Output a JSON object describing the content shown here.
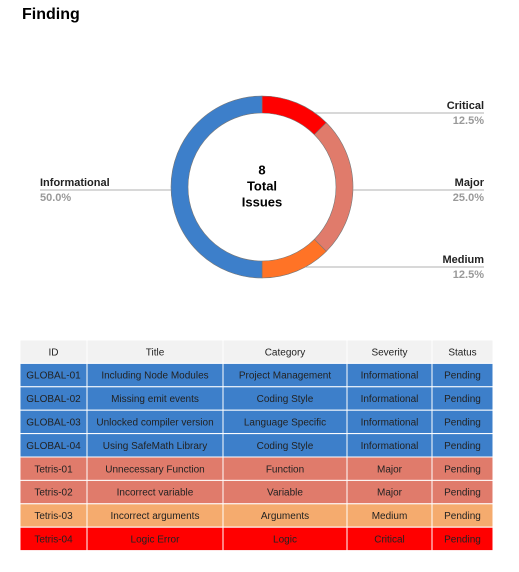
{
  "title": "Finding",
  "chart_data": {
    "type": "donut",
    "categories": [
      "Critical",
      "Major",
      "Medium",
      "Informational"
    ],
    "values": [
      12.5,
      25.0,
      12.5,
      50.0
    ],
    "value_labels": [
      "12.5%",
      "25.0%",
      "12.5%",
      "50.0%"
    ],
    "colors": [
      "#ff0000",
      "#e07b6b",
      "#ff7326",
      "#3d7fca"
    ],
    "center_text": [
      "8",
      "Total",
      "Issues"
    ]
  },
  "table": {
    "header": [
      "ID",
      "Title",
      "Category",
      "Severity",
      "Status"
    ],
    "rows": [
      {
        "color": "#3d7fca",
        "cells": [
          "GLOBAL-01",
          "Including Node Modules",
          "Project Management",
          "Informational",
          "Pending"
        ]
      },
      {
        "color": "#3d7fca",
        "cells": [
          "GLOBAL-02",
          "Missing emit events",
          "Coding Style",
          "Informational",
          "Pending"
        ]
      },
      {
        "color": "#3d7fca",
        "cells": [
          "GLOBAL-03",
          "Unlocked compiler version",
          "Language Specific",
          "Informational",
          "Pending"
        ]
      },
      {
        "color": "#3d7fca",
        "cells": [
          "GLOBAL-04",
          "Using SafeMath Library",
          "Coding Style",
          "Informational",
          "Pending"
        ]
      },
      {
        "color": "#e07b6b",
        "cells": [
          "Tetris-01",
          "Unnecessary Function",
          "Function",
          "Major",
          "Pending"
        ]
      },
      {
        "color": "#e07b6b",
        "cells": [
          "Tetris-02",
          "Incorrect variable",
          "Variable",
          "Major",
          "Pending"
        ]
      },
      {
        "color": "#f5ab6e",
        "cells": [
          "Tetris-03",
          "Incorrect arguments",
          "Arguments",
          "Medium",
          "Pending"
        ]
      },
      {
        "color": "#ff0000",
        "cells": [
          "Tetris-04",
          "Logic Error",
          "Logic",
          "Critical",
          "Pending"
        ]
      }
    ]
  }
}
